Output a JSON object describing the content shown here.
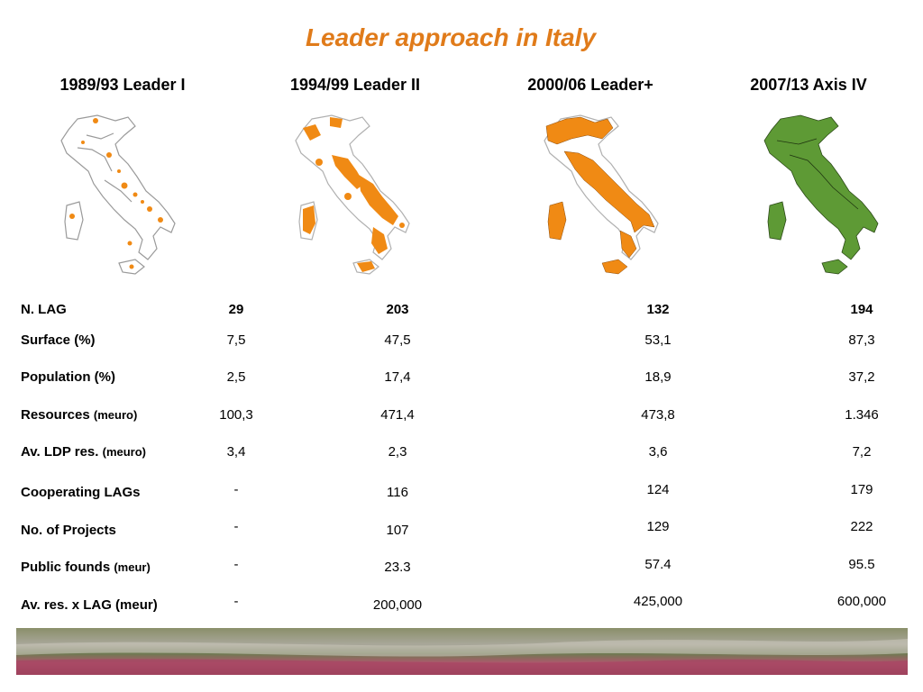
{
  "title": "Leader approach in Italy",
  "colors": {
    "title": "#e07b1a",
    "map_orange": "#f08a14",
    "map_green": "#5e9a35"
  },
  "periods": [
    {
      "label": "1989/93 Leader I"
    },
    {
      "label": "1994/99 Leader II"
    },
    {
      "label": "2000/06 Leader+"
    },
    {
      "label": "2007/13 Axis IV"
    }
  ],
  "rows": {
    "n_lag": {
      "label": "N. LAG",
      "values": [
        "29",
        "203",
        "132",
        "194"
      ]
    },
    "surface": {
      "label": "Surface (%)",
      "values": [
        "7,5",
        "47,5",
        "53,1",
        "87,3"
      ]
    },
    "population": {
      "label": "Population (%)",
      "values": [
        "2,5",
        "17,4",
        "18,9",
        "37,2"
      ]
    },
    "resources": {
      "label": "Resources",
      "unit": "(meuro)",
      "values": [
        "100,3",
        "471,4",
        "473,8",
        "1.346"
      ]
    },
    "ldp_res": {
      "label": "Av. LDP res.",
      "unit": "(meuro)",
      "values": [
        "3,4",
        "2,3",
        "3,6",
        "7,2"
      ]
    },
    "coop_lags": {
      "label": "Cooperating LAGs",
      "values": [
        "-",
        "116",
        "124",
        "179"
      ]
    },
    "projects": {
      "label": "No. of Projects",
      "values": [
        "-",
        "107",
        "129",
        "222"
      ]
    },
    "public_founds": {
      "label": "Public  founds",
      "unit": "(meur)",
      "values": [
        "-",
        "23.3",
        "57.4",
        "95.5"
      ]
    },
    "av_res_lag": {
      "label": "Av. res.  x LAG (meur)",
      "values": [
        "-",
        "200,000",
        "425,000",
        "600,000"
      ]
    }
  }
}
